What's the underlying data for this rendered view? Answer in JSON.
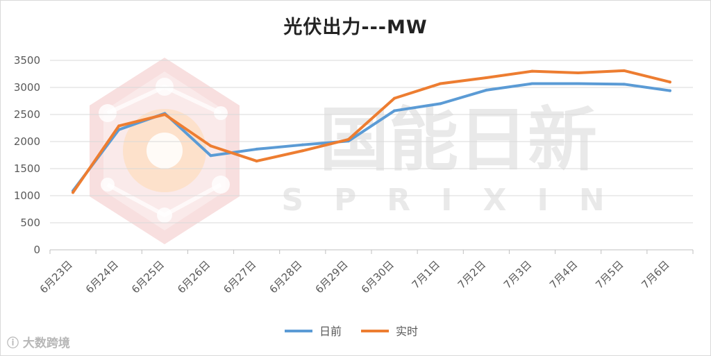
{
  "title": "光伏出力---MW",
  "watermark": {
    "brand": "国能日新",
    "latin": "SPRIXIN",
    "credit": "大数跨境",
    "colors": {
      "logo": "#f3c9c9",
      "logo_glow": "#ffd8b0",
      "text": "#e6e6e6"
    }
  },
  "chart_data": {
    "type": "line",
    "title": "光伏出力---MW",
    "categories": [
      "6月23日",
      "6月24日",
      "6月25日",
      "6月26日",
      "6月27日",
      "6月28日",
      "6月29日",
      "6月30日",
      "7月1日",
      "7月2日",
      "7月3日",
      "7月4日",
      "7月5日",
      "7月6日"
    ],
    "series": [
      {
        "name": "日前",
        "color": "#5b9bd5",
        "values": [
          1090,
          2220,
          2520,
          1740,
          1860,
          1940,
          2010,
          2570,
          2700,
          2950,
          3070,
          3070,
          3060,
          2940
        ]
      },
      {
        "name": "实时",
        "color": "#ed7d31",
        "values": [
          1060,
          2290,
          2500,
          1920,
          1640,
          1830,
          2040,
          2800,
          3070,
          3180,
          3300,
          3270,
          3310,
          3100
        ]
      }
    ],
    "ylim": [
      0,
      3500
    ],
    "yticks": [
      0,
      500,
      1000,
      1500,
      2000,
      2500,
      3000,
      3500
    ],
    "grid": true,
    "legend_position": "bottom",
    "xlabel": "",
    "ylabel": ""
  }
}
